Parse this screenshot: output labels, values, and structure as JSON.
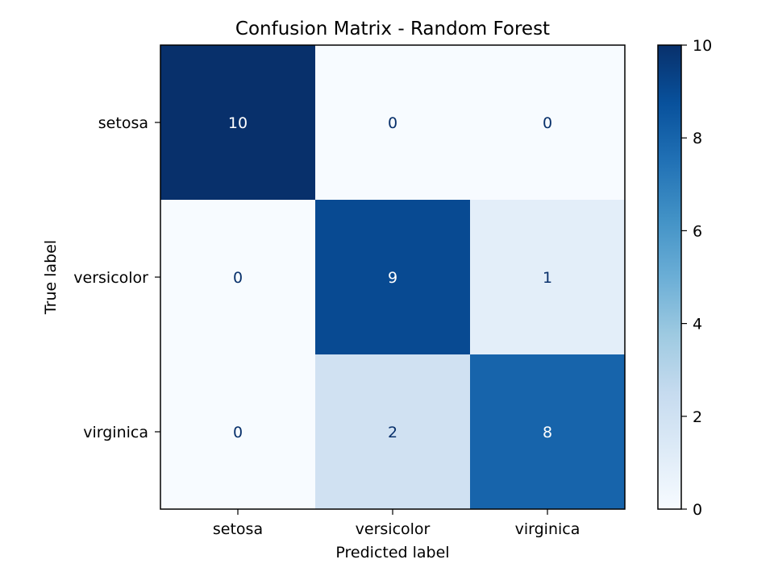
{
  "chart_data": {
    "type": "heatmap",
    "title": "Confusion Matrix - Random Forest",
    "xlabel": "Predicted label",
    "ylabel": "True label",
    "x_categories": [
      "setosa",
      "versicolor",
      "virginica"
    ],
    "y_categories": [
      "setosa",
      "versicolor",
      "virginica"
    ],
    "values": [
      [
        10,
        0,
        0
      ],
      [
        0,
        9,
        1
      ],
      [
        0,
        2,
        8
      ]
    ],
    "colormap": "Blues",
    "color_range": [
      0,
      10
    ],
    "colorbar_ticks": [
      0,
      2,
      4,
      6,
      8,
      10
    ],
    "text_color_dark": "#08306b",
    "text_color_light": "#ffffff",
    "grid": false
  }
}
